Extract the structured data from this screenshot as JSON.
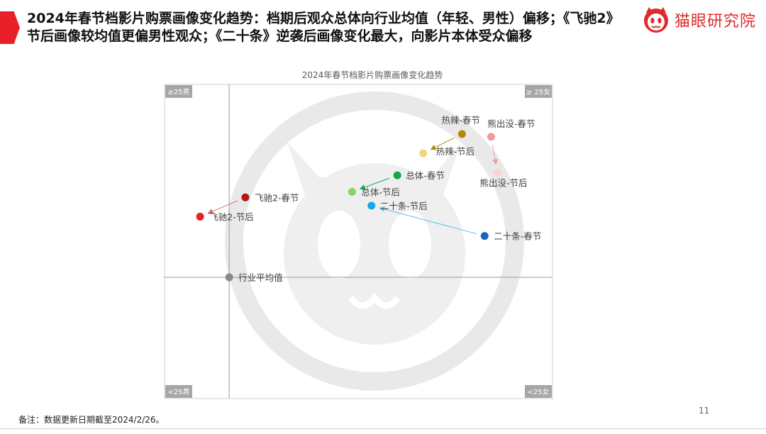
{
  "header": {
    "title": "2024年春节档影片购票画像变化趋势：档期后观众总体向行业均值（年轻、男性）偏移；《飞驰2》节后画像较均值更偏男性观众；《二十条》逆袭后画像变化最大，向影片本体受众偏移",
    "logo_text": "猫眼研究院"
  },
  "footer": {
    "note": "备注：数据更新日期截至2024/2/26。",
    "page_number": "11"
  },
  "colors": {
    "accent_red": "#e8202a",
    "watermark": "#e6e6e6"
  },
  "chart_data": {
    "type": "scatter",
    "title": "2024年春节档影片购票画像变化趋势",
    "corner_labels": {
      "top_left": "≥25男",
      "top_right": "≥ 25女",
      "bottom_left": "<25男",
      "bottom_right": "<25女"
    },
    "axis_meaning": {
      "x": "gender (left = male, right = female)",
      "y": "age (top = 25 and above, bottom = under 25)"
    },
    "xlim": [
      -2,
      10
    ],
    "ylim": [
      -4.4,
      7
    ],
    "grid": false,
    "points": [
      {
        "label": "行业平均值",
        "x": 0,
        "y": 0,
        "color": "#888888"
      },
      {
        "label": "热辣-春节",
        "x": 7.2,
        "y": 5.2,
        "color": "#b8860b"
      },
      {
        "label": "热辣-节后",
        "x": 6.0,
        "y": 4.5,
        "color": "#f5d57a"
      },
      {
        "label": "熊出没-春节",
        "x": 8.1,
        "y": 5.1,
        "color": "#f59a9a"
      },
      {
        "label": "熊出没-节后",
        "x": 8.3,
        "y": 3.8,
        "color": "#fbd3d3"
      },
      {
        "label": "总体-春节",
        "x": 5.2,
        "y": 3.7,
        "color": "#1aa650"
      },
      {
        "label": "总体-节后",
        "x": 3.8,
        "y": 3.1,
        "color": "#8cd06a"
      },
      {
        "label": "二十条-节后",
        "x": 4.4,
        "y": 2.6,
        "color": "#1aa7e8"
      },
      {
        "label": "二十条-春节",
        "x": 7.9,
        "y": 1.5,
        "color": "#1567b5"
      },
      {
        "label": "飞驰2-春节",
        "x": 0.5,
        "y": 2.9,
        "color": "#b01818"
      },
      {
        "label": "飞驰2-节后",
        "x": -0.9,
        "y": 2.2,
        "color": "#e82020"
      }
    ],
    "arrows": [
      {
        "from": "热辣-春节",
        "to": "热辣-节后",
        "color": "#b8860b"
      },
      {
        "from": "熊出没-春节",
        "to": "熊出没-节后",
        "color": "#f59a9a"
      },
      {
        "from": "总体-春节",
        "to": "总体-节后",
        "color": "#1aa650"
      },
      {
        "from": "二十条-春节",
        "to": "二十条-节后",
        "color": "#5bc4ee"
      },
      {
        "from": "飞驰2-春节",
        "to": "飞驰2-节后",
        "color": "#d86a6a"
      }
    ]
  }
}
